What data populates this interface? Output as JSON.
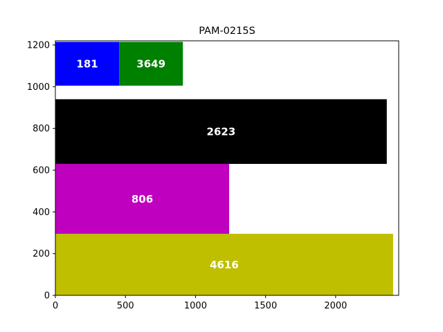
{
  "chart_data": {
    "type": "bar",
    "title": "PAM-0215S",
    "xlabel": "",
    "ylabel": "",
    "xlim": [
      0,
      2450
    ],
    "ylim": [
      0,
      1220
    ],
    "x_ticks": [
      0,
      500,
      1000,
      1500,
      2000
    ],
    "y_ticks": [
      0,
      200,
      400,
      600,
      800,
      1000,
      1200
    ],
    "grid": false,
    "legend": "none",
    "rects": [
      {
        "label": "181",
        "x0": 0,
        "x1": 455,
        "y0": 1005,
        "y1": 1215,
        "color": "#0000ff"
      },
      {
        "label": "3649",
        "x0": 455,
        "x1": 910,
        "y0": 1005,
        "y1": 1215,
        "color": "#008000"
      },
      {
        "label": "2623",
        "x0": 0,
        "x1": 2365,
        "y0": 630,
        "y1": 940,
        "color": "#000000"
      },
      {
        "label": "806",
        "x0": 0,
        "x1": 1240,
        "y0": 295,
        "y1": 630,
        "color": "#bf00bf"
      },
      {
        "label": "4616",
        "x0": 0,
        "x1": 2410,
        "y0": 0,
        "y1": 295,
        "color": "#bfbf00"
      }
    ]
  }
}
